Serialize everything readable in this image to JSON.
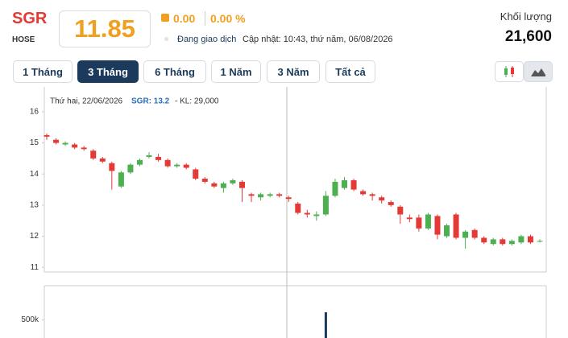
{
  "header": {
    "symbol": "SGR",
    "exchange": "HOSE",
    "price": "11.85",
    "change": "0.00",
    "change_pct": "0.00 %",
    "status": "Đang giao dịch",
    "updated": "Cập nhật: 10:43, thứ năm, 06/08/2026",
    "volume_label": "Khối lượng",
    "volume": "21,600"
  },
  "periods": [
    "1 Tháng",
    "3 Tháng",
    "6 Tháng",
    "1 Năm",
    "3 Năm",
    "Tất cả"
  ],
  "tooltip": {
    "date": "Thứ hai, 22/06/2026",
    "price": "SGR: 13.2",
    "volume": "- KL: 29,000"
  },
  "chart_data": {
    "type": "candlestick",
    "up_color": "#4caf50",
    "down_color": "#e53935",
    "open": [
      15.25,
      15.1,
      14.95,
      14.95,
      14.85,
      14.75,
      14.5,
      14.35,
      13.6,
      14.05,
      14.3,
      14.55,
      14.55,
      14.45,
      14.25,
      14.3,
      14.15,
      13.85,
      13.7,
      13.55,
      13.7,
      13.75,
      13.35,
      13.25,
      13.3,
      13.35,
      13.25,
      13.05,
      12.75,
      12.65,
      12.7,
      13.3,
      13.55,
      13.8,
      13.45,
      13.35,
      13.25,
      13.1,
      12.95,
      12.6,
      12.6,
      12.25,
      12.65,
      12.0,
      12.7,
      11.95,
      12.2,
      11.95,
      11.75,
      11.9,
      11.75,
      11.8,
      12.0,
      11.85
    ],
    "high": [
      15.3,
      15.15,
      15.05,
      15.0,
      14.9,
      14.8,
      14.55,
      14.4,
      14.1,
      14.35,
      14.5,
      14.7,
      14.65,
      14.5,
      14.35,
      14.35,
      14.2,
      13.9,
      13.75,
      13.75,
      13.85,
      13.8,
      13.4,
      13.4,
      13.4,
      13.4,
      13.3,
      13.1,
      12.85,
      12.8,
      13.45,
      13.85,
      13.9,
      13.85,
      13.5,
      13.4,
      13.3,
      13.15,
      13.0,
      12.7,
      12.7,
      12.75,
      12.7,
      12.4,
      12.75,
      12.2,
      12.25,
      12.0,
      11.95,
      11.95,
      11.9,
      12.05,
      12.05,
      11.9
    ],
    "low": [
      15.1,
      14.95,
      14.9,
      14.8,
      14.75,
      14.45,
      14.35,
      13.5,
      13.55,
      14.0,
      14.25,
      14.5,
      14.4,
      14.2,
      14.2,
      14.15,
      13.8,
      13.7,
      13.55,
      13.4,
      13.65,
      13.1,
      13.1,
      13.15,
      13.25,
      13.25,
      13.1,
      12.7,
      12.6,
      12.5,
      12.65,
      13.25,
      13.5,
      13.45,
      13.3,
      13.15,
      13.05,
      12.95,
      12.4,
      12.45,
      12.15,
      12.2,
      11.9,
      11.95,
      11.9,
      11.6,
      11.9,
      11.75,
      11.7,
      11.7,
      11.7,
      11.75,
      11.75,
      11.8
    ],
    "close": [
      15.2,
      15.0,
      15.0,
      14.85,
      14.8,
      14.5,
      14.4,
      14.1,
      14.05,
      14.3,
      14.45,
      14.6,
      14.45,
      14.25,
      14.3,
      14.2,
      13.85,
      13.75,
      13.6,
      13.7,
      13.8,
      13.55,
      13.3,
      13.35,
      13.35,
      13.3,
      13.2,
      12.75,
      12.7,
      12.7,
      13.3,
      13.75,
      13.8,
      13.5,
      13.35,
      13.3,
      13.15,
      13.0,
      12.7,
      12.55,
      12.25,
      12.7,
      12.05,
      12.35,
      11.95,
      12.15,
      11.95,
      11.8,
      11.9,
      11.75,
      11.85,
      12.0,
      11.8,
      11.85
    ],
    "ylim": [
      10.85,
      16.8
    ],
    "yticks": [
      11,
      12,
      13,
      14,
      15,
      16
    ],
    "volume": {
      "color": "#1b3a5c",
      "ylim": [
        0,
        1000000
      ],
      "yticks": [
        {
          "value": 500000,
          "label": "500k"
        }
      ],
      "values": [
        null,
        null,
        null,
        null,
        null,
        null,
        null,
        null,
        null,
        null,
        null,
        null,
        null,
        null,
        null,
        null,
        null,
        null,
        null,
        null,
        null,
        null,
        null,
        null,
        null,
        null,
        null,
        null,
        null,
        null,
        612000,
        null,
        null,
        null,
        null,
        null,
        null,
        null,
        null,
        null,
        null,
        null,
        null,
        null,
        null,
        null,
        null,
        null,
        null,
        null,
        null,
        null,
        null,
        null
      ]
    }
  }
}
